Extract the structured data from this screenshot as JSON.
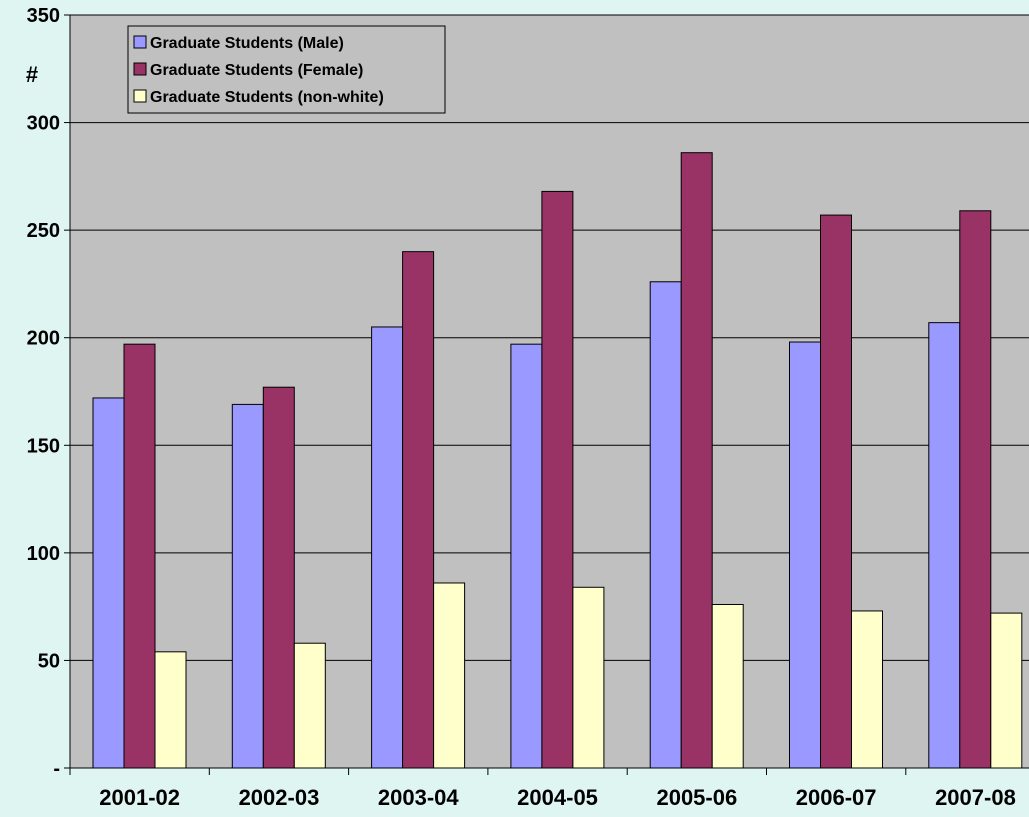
{
  "chart_data": {
    "type": "bar",
    "title": "",
    "xlabel": "",
    "ylabel": "#",
    "ylim": [
      0,
      350
    ],
    "y_ticks": [
      0,
      50,
      100,
      150,
      200,
      250,
      300,
      350
    ],
    "y_tick_labels": [
      "-",
      "50",
      "100",
      "150",
      "200",
      "250",
      "300",
      "350"
    ],
    "grid": true,
    "legend_position": "top-left",
    "categories": [
      "2001-02",
      "2002-03",
      "2003-04",
      "2004-05",
      "2005-06",
      "2006-07",
      "2007-08"
    ],
    "series": [
      {
        "name": "Graduate Students (Male)",
        "color": "#9999ff",
        "values": [
          172,
          169,
          205,
          197,
          226,
          198,
          207
        ]
      },
      {
        "name": "Graduate Students (Female)",
        "color": "#993366",
        "values": [
          197,
          177,
          240,
          268,
          286,
          257,
          259
        ]
      },
      {
        "name": "Graduate Students (non-white)",
        "color": "#ffffcc",
        "values": [
          54,
          58,
          86,
          84,
          76,
          73,
          72
        ]
      }
    ],
    "plot_background": "#c0c0c0",
    "page_background": "#dff5f2"
  }
}
